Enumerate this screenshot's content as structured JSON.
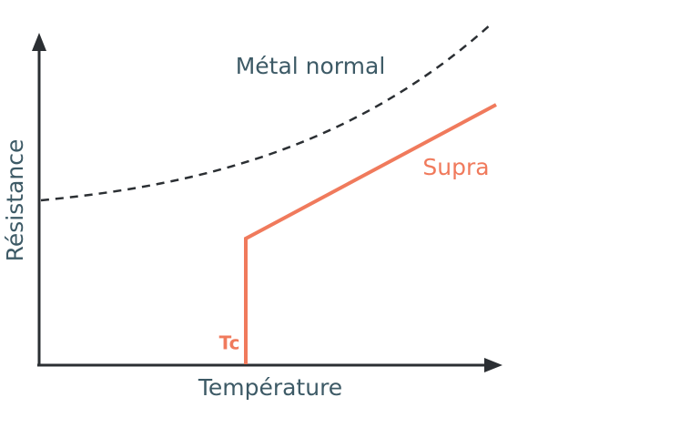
{
  "labels": {
    "normal_metal": "Métal normal",
    "superconductor": "Supra",
    "critical_temperature": "Tc"
  },
  "axes": {
    "x_label": "Température",
    "y_label": "Résistance"
  }
}
